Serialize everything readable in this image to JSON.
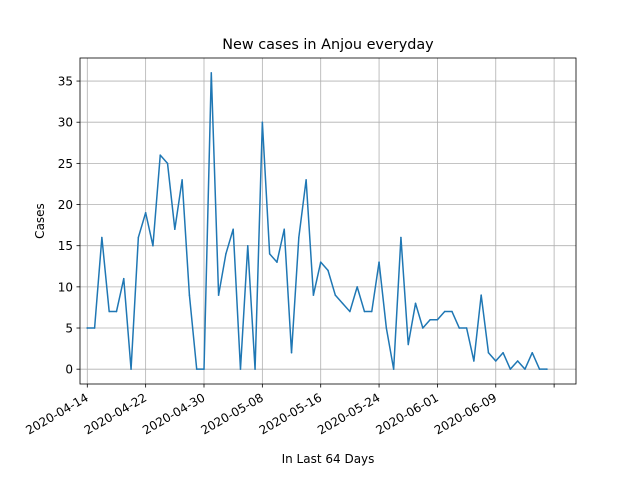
{
  "chart_data": {
    "type": "line",
    "title": "New cases in Anjou everyday",
    "xlabel": "In Last 64 Days",
    "ylabel": "Cases",
    "x_start": "2020-04-14",
    "x_end": "2020-06-16",
    "xlim": [
      "2020-04-13",
      "2020-06-20"
    ],
    "ylim": [
      -1.8,
      37.8
    ],
    "grid": true,
    "legend": "none",
    "x_ticks": [
      "2020-04-14",
      "2020-04-22",
      "2020-04-30",
      "2020-05-08",
      "2020-05-16",
      "2020-05-24",
      "2020-06-01",
      "2020-06-09",
      ""
    ],
    "y_ticks": [
      0,
      5,
      10,
      15,
      20,
      25,
      30,
      35
    ],
    "series": [
      {
        "color": "#1f77b4",
        "values": [
          5,
          5,
          16,
          7,
          7,
          11,
          0,
          16,
          19,
          15,
          26,
          25,
          17,
          23,
          9,
          0,
          0,
          36,
          9,
          14,
          17,
          0,
          15,
          0,
          30,
          14,
          13,
          17,
          2,
          16,
          23,
          9,
          13,
          12,
          9,
          8,
          7,
          10,
          7,
          7,
          13,
          5,
          0,
          16,
          3,
          8,
          5,
          6,
          6,
          7,
          7,
          5,
          5,
          1,
          9,
          2,
          1,
          2,
          0,
          1,
          0,
          2,
          0,
          0
        ]
      }
    ]
  }
}
